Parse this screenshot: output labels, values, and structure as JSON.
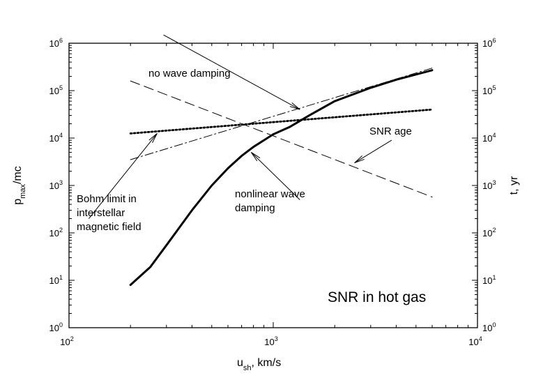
{
  "chart_data": {
    "type": "line",
    "x_scale": "log",
    "y_scale": "log",
    "xlim": [
      100,
      10000
    ],
    "ylim_left": [
      1,
      1000000
    ],
    "ylim_right": [
      1,
      1000000
    ],
    "xlabel_main": "u",
    "xlabel_sub": "sh",
    "xlabel_rest": ", km/s",
    "ylabel_left_main": "p",
    "ylabel_left_sub": "max",
    "ylabel_left_rest": "/mc",
    "ylabel_right": "t, yr",
    "x_ticks": [
      {
        "base": "10",
        "exp": "2",
        "value": 100
      },
      {
        "base": "10",
        "exp": "3",
        "value": 1000
      },
      {
        "base": "10",
        "exp": "4",
        "value": 10000
      }
    ],
    "y_ticks": [
      {
        "base": "10",
        "exp": "0",
        "value": 1
      },
      {
        "base": "10",
        "exp": "1",
        "value": 10
      },
      {
        "base": "10",
        "exp": "2",
        "value": 100
      },
      {
        "base": "10",
        "exp": "3",
        "value": 1000
      },
      {
        "base": "10",
        "exp": "4",
        "value": 10000
      },
      {
        "base": "10",
        "exp": "5",
        "value": 100000
      },
      {
        "base": "10",
        "exp": "6",
        "value": 1000000
      }
    ],
    "grid": false,
    "series": [
      {
        "style": "solid-thick",
        "x": [
          200,
          250,
          300,
          400,
          500,
          600,
          700,
          800,
          1000,
          1200,
          1500,
          2000,
          3000,
          4000,
          6000
        ],
        "y": [
          8,
          19,
          55,
          300,
          1000,
          2300,
          4200,
          6500,
          12000,
          17000,
          30000,
          60000,
          115000,
          170000,
          270000
        ]
      },
      {
        "style": "long-dash",
        "x": [
          200,
          6000
        ],
        "y": [
          160000,
          570
        ]
      },
      {
        "style": "dotted",
        "x": [
          200,
          6000
        ],
        "y": [
          12500,
          40000
        ]
      },
      {
        "style": "dash-dot",
        "x": [
          200,
          6000
        ],
        "y": [
          3500,
          300000
        ]
      }
    ],
    "annotations": [
      {
        "lines": [
          "no wave damping"
        ],
        "cls": "ann",
        "anchor": "start"
      },
      {
        "lines": [
          "SNR age"
        ],
        "cls": "ann",
        "anchor": "start"
      },
      {
        "lines": [
          "Bohm limit in",
          "interstellar",
          "magnetic field"
        ],
        "cls": "ann",
        "anchor": "start"
      },
      {
        "lines": [
          "nonlinear wave",
          "damping"
        ],
        "cls": "ann",
        "anchor": "start"
      },
      {
        "lines": [
          "SNR in hot gas"
        ],
        "cls": "ann-big",
        "anchor": "start"
      }
    ],
    "arrows": [
      {
        "from": [
          290,
          1500000
        ],
        "to": [
          1350,
          40000
        ]
      },
      {
        "from": [
          3800,
          9000
        ],
        "to": [
          2500,
          3000
        ]
      },
      {
        "from": [
          125,
          200
        ],
        "to": [
          270,
          12500
        ]
      },
      {
        "from": [
          1350,
          500
        ],
        "to": [
          780,
          5000
        ]
      }
    ]
  }
}
